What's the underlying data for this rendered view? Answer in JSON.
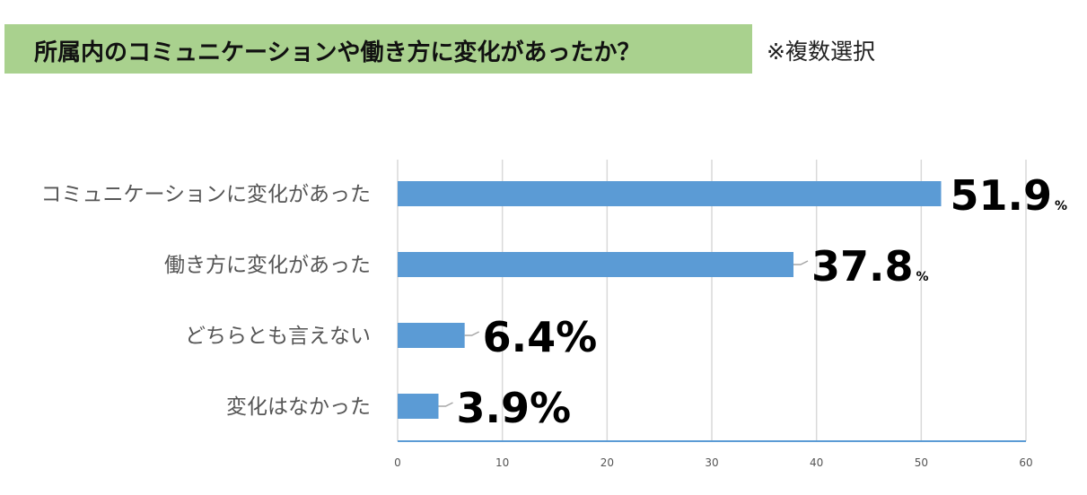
{
  "header": {
    "title": "所属内のコミュニケーションや働き方に変化があったか？",
    "note": "※複数選択"
  },
  "chart_data": {
    "type": "bar",
    "orientation": "horizontal",
    "categories": [
      "コミュニケーションに変化があった",
      "働き方に変化があった",
      "どちらとも言えない",
      "変化はなかった"
    ],
    "values": [
      51.9,
      37.8,
      6.4,
      3.9
    ],
    "data_labels": [
      {
        "num": "51.9",
        "unit": "%",
        "unit_small": true
      },
      {
        "num": "37.8",
        "unit": "%",
        "unit_small": true
      },
      {
        "num": "6.4",
        "unit": "%",
        "unit_small": false
      },
      {
        "num": "3.9",
        "unit": "%",
        "unit_small": false
      }
    ],
    "xlim": [
      0,
      60
    ],
    "xticks": [
      0,
      10,
      20,
      30,
      40,
      50,
      60
    ],
    "grid": true,
    "bar_color": "#5b9bd5",
    "title": "",
    "xlabel": "",
    "ylabel": ""
  }
}
